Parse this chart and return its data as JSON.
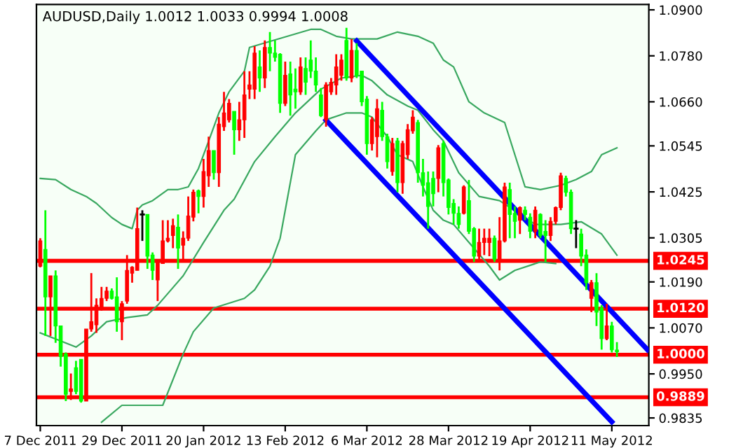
{
  "chart_data": {
    "type": "candlestick",
    "title": "AUDUSD,Daily 1.0012 1.0033 0.9994 1.0008",
    "ohlc": [
      [
        1.0231,
        1.0304,
        1.0228,
        1.0297
      ],
      [
        1.0275,
        1.0377,
        1.0049,
        1.0151
      ],
      [
        1.0151,
        1.0206,
        1.0049,
        1.0206
      ],
      [
        1.0206,
        1.022,
        1.0031,
        1.0075
      ],
      [
        1.0075,
        1.0075,
        0.9969,
        0.9995
      ],
      [
        1.0002,
        1.0006,
        0.9879,
        0.9897
      ],
      [
        0.9904,
        0.9951,
        0.9882,
        0.9911
      ],
      [
        0.9966,
        0.9984,
        0.9897,
        0.9904
      ],
      [
        0.9988,
        0.9988,
        0.9875,
        0.9879
      ],
      [
        0.9879,
        1.0067,
        0.9879,
        1.0067
      ],
      [
        1.0067,
        1.0213,
        1.006,
        1.0086
      ],
      [
        1.0078,
        1.0147,
        1.0057,
        1.0129
      ],
      [
        1.0122,
        1.0177,
        1.0115,
        1.0147
      ],
      [
        1.0147,
        1.0177,
        1.014,
        1.0166
      ],
      [
        1.0166,
        1.0173,
        1.0144,
        1.0147
      ],
      [
        1.0151,
        1.0202,
        1.006,
        1.0086
      ],
      [
        1.0086,
        1.014,
        1.0038,
        1.0133
      ],
      [
        1.014,
        1.026,
        1.0133,
        1.022
      ],
      [
        1.0213,
        1.0231,
        1.0188,
        1.0228
      ],
      [
        1.022,
        1.0384,
        1.022,
        1.0329
      ],
      [
        1.0366,
        1.0377,
        1.0297,
        1.0366
      ],
      [
        1.0366,
        1.0366,
        1.0224,
        1.0257
      ],
      [
        1.026,
        1.0267,
        1.0195,
        1.022
      ],
      [
        1.0195,
        1.0249,
        1.014,
        1.0242
      ],
      [
        1.0238,
        1.0351,
        1.0238,
        1.0297
      ],
      [
        1.0297,
        1.0351,
        1.0293,
        1.0304
      ],
      [
        1.0311,
        1.0355,
        1.0278,
        1.0337
      ],
      [
        1.0333,
        1.0366,
        1.0224,
        1.0278
      ],
      [
        1.0286,
        1.0322,
        1.0242,
        1.0304
      ],
      [
        1.0304,
        1.0413,
        1.0297,
        1.0362
      ],
      [
        1.0359,
        1.0431,
        1.0348,
        1.0424
      ],
      [
        1.0428,
        1.0431,
        1.0369,
        1.0413
      ],
      [
        1.0413,
        1.0511,
        1.0384,
        1.0478
      ],
      [
        1.0467,
        1.0569,
        1.0438,
        1.0533
      ],
      [
        1.0533,
        1.0533,
        1.0457,
        1.0475
      ],
      [
        1.0475,
        1.062,
        1.0438,
        1.0602
      ],
      [
        1.0595,
        1.0686,
        1.0584,
        1.0631
      ],
      [
        1.0613,
        1.0667,
        1.0606,
        1.0656
      ],
      [
        1.0635,
        1.0635,
        1.0522,
        1.0587
      ],
      [
        1.0587,
        1.066,
        1.0558,
        1.0613
      ],
      [
        1.0613,
        1.074,
        1.0566,
        1.0678
      ],
      [
        1.0693,
        1.074,
        1.0667,
        1.0704
      ],
      [
        1.0693,
        1.0805,
        1.0667,
        1.0787
      ],
      [
        1.0751,
        1.0794,
        1.0686,
        1.0722
      ],
      [
        1.0722,
        1.082,
        1.0696,
        1.0802
      ],
      [
        1.0802,
        1.0842,
        1.074,
        1.0787
      ],
      [
        1.0787,
        1.082,
        1.0765,
        1.0776
      ],
      [
        1.0784,
        1.0787,
        1.0631,
        1.0656
      ],
      [
        1.0656,
        1.0765,
        1.0649,
        1.0729
      ],
      [
        1.0733,
        1.0765,
        1.0624,
        1.0678
      ],
      [
        1.0693,
        1.0747,
        1.0642,
        1.0686
      ],
      [
        1.0686,
        1.0776,
        1.0678,
        1.0751
      ],
      [
        1.0747,
        1.0776,
        1.0678,
        1.0711
      ],
      [
        1.0769,
        1.082,
        1.0722,
        1.074
      ],
      [
        1.074,
        1.0776,
        1.0686,
        1.0704
      ],
      [
        1.0678,
        1.0696,
        1.062,
        1.0624
      ],
      [
        1.0613,
        1.0711,
        1.0595,
        1.0704
      ],
      [
        1.0686,
        1.0722,
        1.0678,
        1.0711
      ],
      [
        1.0704,
        1.0784,
        1.0678,
        1.0751
      ],
      [
        1.0729,
        1.0784,
        1.0715,
        1.0769
      ],
      [
        1.082,
        1.0853,
        1.0715,
        1.0722
      ],
      [
        1.0722,
        1.0824,
        1.0711,
        1.0794
      ],
      [
        1.0794,
        1.0813,
        1.0722,
        1.0729
      ],
      [
        1.074,
        1.074,
        1.0649,
        1.066
      ],
      [
        1.0667,
        1.0675,
        1.0522,
        1.0551
      ],
      [
        1.0551,
        1.062,
        1.0533,
        1.0613
      ],
      [
        1.0569,
        1.0667,
        1.0515,
        1.0642
      ],
      [
        1.0638,
        1.066,
        1.0558,
        1.0569
      ],
      [
        1.0569,
        1.0577,
        1.0486,
        1.0504
      ],
      [
        1.0478,
        1.0566,
        1.0467,
        1.0551
      ],
      [
        1.0558,
        1.0566,
        1.0424,
        1.0449
      ],
      [
        1.0449,
        1.0558,
        1.042,
        1.0551
      ],
      [
        1.0522,
        1.0602,
        1.0511,
        1.0587
      ],
      [
        1.0584,
        1.0638,
        1.0577,
        1.062
      ],
      [
        1.0606,
        1.0613,
        1.0449,
        1.0475
      ],
      [
        1.0475,
        1.0511,
        1.0413,
        1.0442
      ],
      [
        1.0449,
        1.0478,
        1.0329,
        1.0387
      ],
      [
        1.046,
        1.0478,
        1.0387,
        1.042
      ],
      [
        1.046,
        1.0547,
        1.0424,
        1.054
      ],
      [
        1.0551,
        1.0558,
        1.0413,
        1.0449
      ],
      [
        1.0456,
        1.046,
        1.0366,
        1.0384
      ],
      [
        1.0395,
        1.0406,
        1.034,
        1.0369
      ],
      [
        1.0369,
        1.0387,
        1.0329,
        1.034
      ],
      [
        1.0369,
        1.0442,
        1.0366,
        1.0438
      ],
      [
        1.0402,
        1.0456,
        1.0315,
        1.0322
      ],
      [
        1.0329,
        1.0333,
        1.0242,
        1.0257
      ],
      [
        1.0257,
        1.0329,
        1.0249,
        1.0293
      ],
      [
        1.0293,
        1.0329,
        1.026,
        1.0304
      ],
      [
        1.0293,
        1.0329,
        1.0257,
        1.0304
      ],
      [
        1.0304,
        1.0311,
        1.0242,
        1.0249
      ],
      [
        1.0249,
        1.0359,
        1.022,
        1.0297
      ],
      [
        1.0297,
        1.0449,
        1.0293,
        1.0438
      ],
      [
        1.0431,
        1.0449,
        1.0304,
        1.0366
      ],
      [
        1.0369,
        1.0387,
        1.0304,
        1.0348
      ],
      [
        1.0351,
        1.0387,
        1.0315,
        1.0384
      ],
      [
        1.0377,
        1.0387,
        1.0351,
        1.0366
      ],
      [
        1.0359,
        1.0369,
        1.0304,
        1.0322
      ],
      [
        1.0322,
        1.0387,
        1.0304,
        1.0377
      ],
      [
        1.0366,
        1.0369,
        1.0304,
        1.0311
      ],
      [
        1.0322,
        1.0351,
        1.0242,
        1.0311
      ],
      [
        1.0311,
        1.0359,
        1.0297,
        1.0348
      ],
      [
        1.0348,
        1.0387,
        1.034,
        1.0384
      ],
      [
        1.0384,
        1.0475,
        1.0377,
        1.0467
      ],
      [
        1.046,
        1.0467,
        1.0413,
        1.0424
      ],
      [
        1.0424,
        1.0431,
        1.0315,
        1.0329
      ],
      [
        1.0329,
        1.0351,
        1.0278,
        1.0329
      ],
      [
        1.0315,
        1.0329,
        1.0231,
        1.0257
      ],
      [
        1.026,
        1.0275,
        1.0169,
        1.0188
      ],
      [
        1.0147,
        1.0195,
        1.0111,
        1.0188
      ],
      [
        1.0188,
        1.0213,
        1.0075,
        1.0111
      ],
      [
        1.0122,
        1.0129,
        1.0013,
        1.0042
      ],
      [
        1.0042,
        1.0133,
        1.0038,
        1.0075
      ],
      [
        1.0075,
        1.0086,
        1.0006,
        1.0013
      ],
      [
        1.0012,
        1.0033,
        0.9994,
        1.0008
      ],
      null,
      null,
      null,
      null,
      null,
      null
    ],
    "colors": [
      "#ff0000",
      "#00ff00",
      "#ff0000",
      "#00ff00",
      "#00ff00",
      "#00ff00",
      "#ff0000",
      "#00ff00",
      "#00ff00",
      "#ff0000",
      "#ff0000",
      "#ff0000",
      "#ff0000",
      "#ff0000",
      "#00ff00",
      "#00ff00",
      "#ff0000",
      "#ff0000",
      "#ff0000",
      "#ff0000",
      "#000000",
      "#00ff00",
      "#00ff00",
      "#ff0000",
      "#ff0000",
      "#ff0000",
      "#ff0000",
      "#00ff00",
      "#ff0000",
      "#ff0000",
      "#ff0000",
      "#00ff00",
      "#ff0000",
      "#ff0000",
      "#00ff00",
      "#ff0000",
      "#ff0000",
      "#ff0000",
      "#00ff00",
      "#ff0000",
      "#ff0000",
      "#ff0000",
      "#ff0000",
      "#00ff00",
      "#ff0000",
      "#00ff00",
      "#00ff00",
      "#00ff00",
      "#ff0000",
      "#00ff00",
      "#00ff00",
      "#ff0000",
      "#00ff00",
      "#00ff00",
      "#00ff00",
      "#00ff00",
      "#ff0000",
      "#ff0000",
      "#ff0000",
      "#ff0000",
      "#00ff00",
      "#ff0000",
      "#00ff00",
      "#00ff00",
      "#00ff00",
      "#ff0000",
      "#ff0000",
      "#00ff00",
      "#00ff00",
      "#ff0000",
      "#00ff00",
      "#ff0000",
      "#ff0000",
      "#ff0000",
      "#00ff00",
      "#00ff00",
      "#00ff00",
      "#00ff00",
      "#ff0000",
      "#00ff00",
      "#00ff00",
      "#00ff00",
      "#00ff00",
      "#ff0000",
      "#00ff00",
      "#00ff00",
      "#ff0000",
      "#ff0000",
      "#ff0000",
      "#00ff00",
      "#ff0000",
      "#ff0000",
      "#00ff00",
      "#00ff00",
      "#ff0000",
      "#00ff00",
      "#00ff00",
      "#ff0000",
      "#00ff00",
      "#00ff00",
      "#ff0000",
      "#ff0000",
      "#ff0000",
      "#00ff00",
      "#00ff00",
      "#000000",
      "#00ff00",
      "#00ff00",
      "#ff0000",
      "#00ff00",
      "#00ff00",
      "#ff0000",
      "#00ff00",
      "#00ff00",
      null,
      null,
      null,
      null,
      null,
      null
    ],
    "series": [
      {
        "type": "line",
        "color": "#3aa860",
        "values": [
          1.046,
          null,
          null,
          1.0457,
          null,
          null,
          1.0431,
          null,
          null,
          1.0413,
          null,
          1.0395,
          null,
          null,
          1.0358,
          null,
          1.034,
          null,
          1.0329,
          1.0377,
          1.0391,
          null,
          1.0402,
          null,
          null,
          1.0431,
          null,
          1.0431,
          null,
          1.0438,
          null,
          1.0486,
          null,
          1.0558,
          null,
          1.0631,
          null,
          1.0686,
          null,
          null,
          1.074,
          1.0802,
          null,
          null,
          null,
          null,
          null,
          null,
          null,
          null,
          null,
          null,
          null,
          1.0849,
          null,
          1.0849,
          null,
          null,
          1.0831,
          null,
          null,
          1.0824,
          null,
          null,
          null,
          null,
          1.0824,
          null,
          null,
          null,
          1.0842,
          null,
          null,
          null,
          1.0831,
          null,
          null,
          1.0813,
          null,
          1.0769,
          null,
          1.0751,
          null,
          null,
          1.066,
          null,
          null,
          1.0631,
          null,
          null,
          null,
          1.0606,
          null,
          1.0522,
          null,
          1.0438,
          null,
          null,
          1.0431,
          null,
          null,
          null,
          1.0442,
          null,
          null,
          1.0457,
          null,
          null,
          1.0478,
          null,
          1.0522,
          null,
          null,
          1.054,
          null,
          null,
          null,
          null,
          null,
          null
        ]
      },
      {
        "type": "line",
        "color": "#3aa860",
        "values": [
          1.0057,
          null,
          null,
          null,
          null,
          null,
          null,
          1.002,
          null,
          null,
          1.0049,
          null,
          null,
          1.0086,
          null,
          null,
          null,
          1.0097,
          null,
          null,
          null,
          1.0104,
          null,
          1.0129,
          null,
          null,
          null,
          null,
          1.0206,
          null,
          null,
          null,
          1.0293,
          null,
          null,
          null,
          1.0377,
          null,
          1.0406,
          null,
          null,
          null,
          1.0504,
          null,
          null,
          null,
          1.0569,
          null,
          null,
          null,
          1.0631,
          null,
          null,
          null,
          null,
          1.0693,
          null,
          null,
          null,
          1.0722,
          null,
          null,
          null,
          1.0729,
          null,
          1.0715,
          null,
          null,
          1.0678,
          null,
          null,
          null,
          1.0649,
          null,
          1.0638,
          null,
          null,
          1.0587,
          null,
          1.0558,
          null,
          null,
          1.0475,
          null,
          null,
          null,
          1.0413,
          null,
          null,
          null,
          1.0402,
          null,
          null,
          null,
          null,
          null,
          null,
          1.034,
          null,
          null,
          null,
          null,
          1.034,
          null,
          null,
          null,
          1.0347,
          null,
          null,
          null,
          1.0315,
          null,
          null,
          1.026,
          null,
          null,
          null,
          null,
          null,
          null
        ]
      },
      {
        "type": "line",
        "color": "#3aa860",
        "values": [
          null,
          null,
          null,
          null,
          null,
          null,
          null,
          null,
          null,
          null,
          null,
          null,
          0.9824,
          null,
          null,
          null,
          0.9868,
          null,
          null,
          null,
          0.9868,
          null,
          null,
          null,
          0.9868,
          null,
          null,
          null,
          1.0002,
          null,
          1.006,
          null,
          null,
          null,
          1.0122,
          null,
          null,
          null,
          null,
          null,
          1.0147,
          null,
          1.0169,
          null,
          null,
          1.0231,
          null,
          1.0304,
          null,
          null,
          1.0522,
          null,
          null,
          null,
          1.0584,
          null,
          1.0613,
          null,
          null,
          null,
          1.0631,
          null,
          null,
          1.0631,
          null,
          1.062,
          null,
          null,
          1.0569,
          null,
          1.0522,
          null,
          null,
          1.0504,
          null,
          1.0438,
          null,
          1.0377,
          null,
          1.0351,
          null,
          1.034,
          null,
          null,
          1.0293,
          null,
          null,
          null,
          1.0231,
          null,
          1.0195,
          null,
          null,
          1.022,
          null,
          null,
          null,
          null,
          1.0242,
          null,
          null,
          1.0238,
          null,
          null,
          null,
          null,
          null,
          null,
          null,
          null,
          null,
          null,
          null,
          null,
          null,
          null,
          null,
          null,
          null,
          null
        ]
      },
      {
        "type": "line",
        "color": "#0000ff",
        "values": [
          null,
          null,
          null,
          null,
          null,
          null,
          null,
          null,
          null,
          null,
          null,
          null,
          null,
          null,
          null,
          null,
          null,
          null,
          null,
          null,
          null,
          null,
          null,
          null,
          null,
          null,
          null,
          null,
          null,
          null,
          null,
          null,
          null,
          null,
          null,
          null,
          null,
          null,
          null,
          null,
          null,
          null,
          null,
          null,
          null,
          null,
          null,
          null,
          null,
          null,
          null,
          null,
          null,
          null,
          null,
          null,
          null,
          null,
          null,
          null,
          null,
          null,
          1.0819,
          null,
          null,
          null,
          null,
          null,
          null,
          null,
          null,
          null,
          null,
          null,
          null,
          null,
          null,
          null,
          null,
          null,
          null,
          null,
          null,
          null,
          null,
          null,
          null,
          null,
          null,
          null,
          null,
          null,
          null,
          null,
          null,
          null,
          null,
          null,
          null,
          null,
          null,
          null,
          null,
          null,
          null,
          null,
          null,
          null,
          null,
          null,
          null,
          null,
          null,
          null,
          null,
          null,
          null,
          null,
          null,
          1.0013
        ]
      },
      {
        "type": "line",
        "color": "#0000ff",
        "values": [
          null,
          null,
          null,
          null,
          null,
          null,
          null,
          null,
          null,
          null,
          null,
          null,
          null,
          null,
          null,
          null,
          null,
          null,
          null,
          null,
          null,
          null,
          null,
          null,
          null,
          null,
          null,
          null,
          null,
          null,
          null,
          null,
          null,
          null,
          null,
          null,
          null,
          null,
          null,
          null,
          null,
          null,
          null,
          null,
          null,
          null,
          null,
          null,
          null,
          null,
          null,
          null,
          null,
          null,
          null,
          null,
          1.0612,
          null,
          null,
          null,
          null,
          null,
          null,
          null,
          null,
          null,
          null,
          null,
          null,
          null,
          null,
          null,
          null,
          null,
          null,
          null,
          null,
          null,
          null,
          null,
          null,
          null,
          null,
          null,
          null,
          null,
          null,
          null,
          null,
          null,
          null,
          null,
          null,
          null,
          null,
          null,
          null,
          null,
          null,
          null,
          null,
          null,
          null,
          null,
          null,
          null,
          null,
          null,
          null,
          null,
          null,
          null,
          0.9825,
          null,
          null,
          null,
          null,
          null,
          null,
          null
        ]
      }
    ],
    "ref_lines": [
      {
        "axis": "y",
        "value": 1.0245,
        "label": "1.0245",
        "color": "#ff0000"
      },
      {
        "axis": "y",
        "value": 1.012,
        "label": "1.0120",
        "color": "#ff0000"
      },
      {
        "axis": "y",
        "value": 1.0,
        "label": "1.0000",
        "color": "#ff0000"
      },
      {
        "axis": "y",
        "value": 0.9889,
        "label": "0.9889",
        "color": "#ff0000"
      }
    ],
    "ylim": [
      0.9815,
      1.0914
    ],
    "categories": [
      "7 Dec 2011",
      null,
      null,
      null,
      null,
      null,
      null,
      null,
      null,
      null,
      null,
      null,
      null,
      null,
      null,
      null,
      "29 Dec 2011",
      null,
      null,
      null,
      null,
      null,
      null,
      null,
      null,
      null,
      null,
      null,
      null,
      null,
      null,
      null,
      "20 Jan 2012",
      null,
      null,
      null,
      null,
      null,
      null,
      null,
      null,
      null,
      null,
      null,
      null,
      null,
      null,
      null,
      "13 Feb 2012",
      null,
      null,
      null,
      null,
      null,
      null,
      null,
      null,
      null,
      null,
      null,
      null,
      null,
      null,
      null,
      "6 Mar 2012",
      null,
      null,
      null,
      null,
      null,
      null,
      null,
      null,
      null,
      null,
      null,
      null,
      null,
      null,
      null,
      "28 Mar 2012",
      null,
      null,
      null,
      null,
      null,
      null,
      null,
      null,
      null,
      null,
      null,
      null,
      null,
      null,
      null,
      "19 Apr 2012",
      null,
      null,
      null,
      null,
      null,
      null,
      null,
      null,
      null,
      null,
      null,
      null,
      null,
      null,
      null,
      "11 May 2012",
      null,
      null,
      null,
      null,
      null,
      null,
      null
    ],
    "yticks": [
      {
        "value": 1.09,
        "label": "1.0900"
      },
      {
        "value": 1.078,
        "label": "1.0780"
      },
      {
        "value": 1.066,
        "label": "1.0660"
      },
      {
        "value": 1.0545,
        "label": "1.0545"
      },
      {
        "value": 1.0425,
        "label": "1.0425"
      },
      {
        "value": 1.0305,
        "label": "1.0305"
      },
      {
        "value": 1.019,
        "label": "1.0190"
      },
      {
        "value": 1.007,
        "label": "1.0070"
      },
      {
        "value": 0.995,
        "label": "0.9950"
      },
      {
        "value": 0.9835,
        "label": "0.9835"
      }
    ],
    "grid": false,
    "legend": false
  }
}
